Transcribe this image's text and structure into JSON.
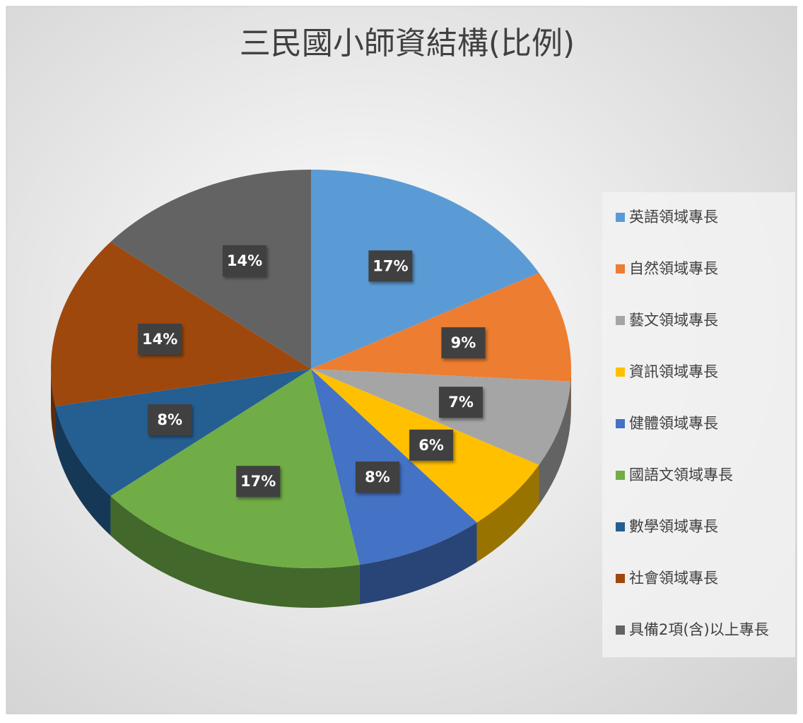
{
  "chart_data": {
    "type": "pie",
    "title": "三民國小師資結構(比例)",
    "categories": [
      "英語領域專長",
      "自然領域專長",
      "藝文領域專長",
      "資訊領域專長",
      "健體領域專長",
      "國語文領域專長",
      "數學領域專長",
      "社會領域專長",
      "具備2項(含)以上專長"
    ],
    "values": [
      17,
      9,
      7,
      6,
      8,
      17,
      8,
      14,
      14
    ],
    "value_labels": [
      "17%",
      "9%",
      "7%",
      "6%",
      "8%",
      "17%",
      "8%",
      "14%",
      "14%"
    ],
    "colors": [
      "#5b9bd5",
      "#ed7d31",
      "#a5a5a5",
      "#ffc000",
      "#4472c4",
      "#70ad47",
      "#255e91",
      "#9e480e",
      "#636363"
    ],
    "legend": "right"
  }
}
